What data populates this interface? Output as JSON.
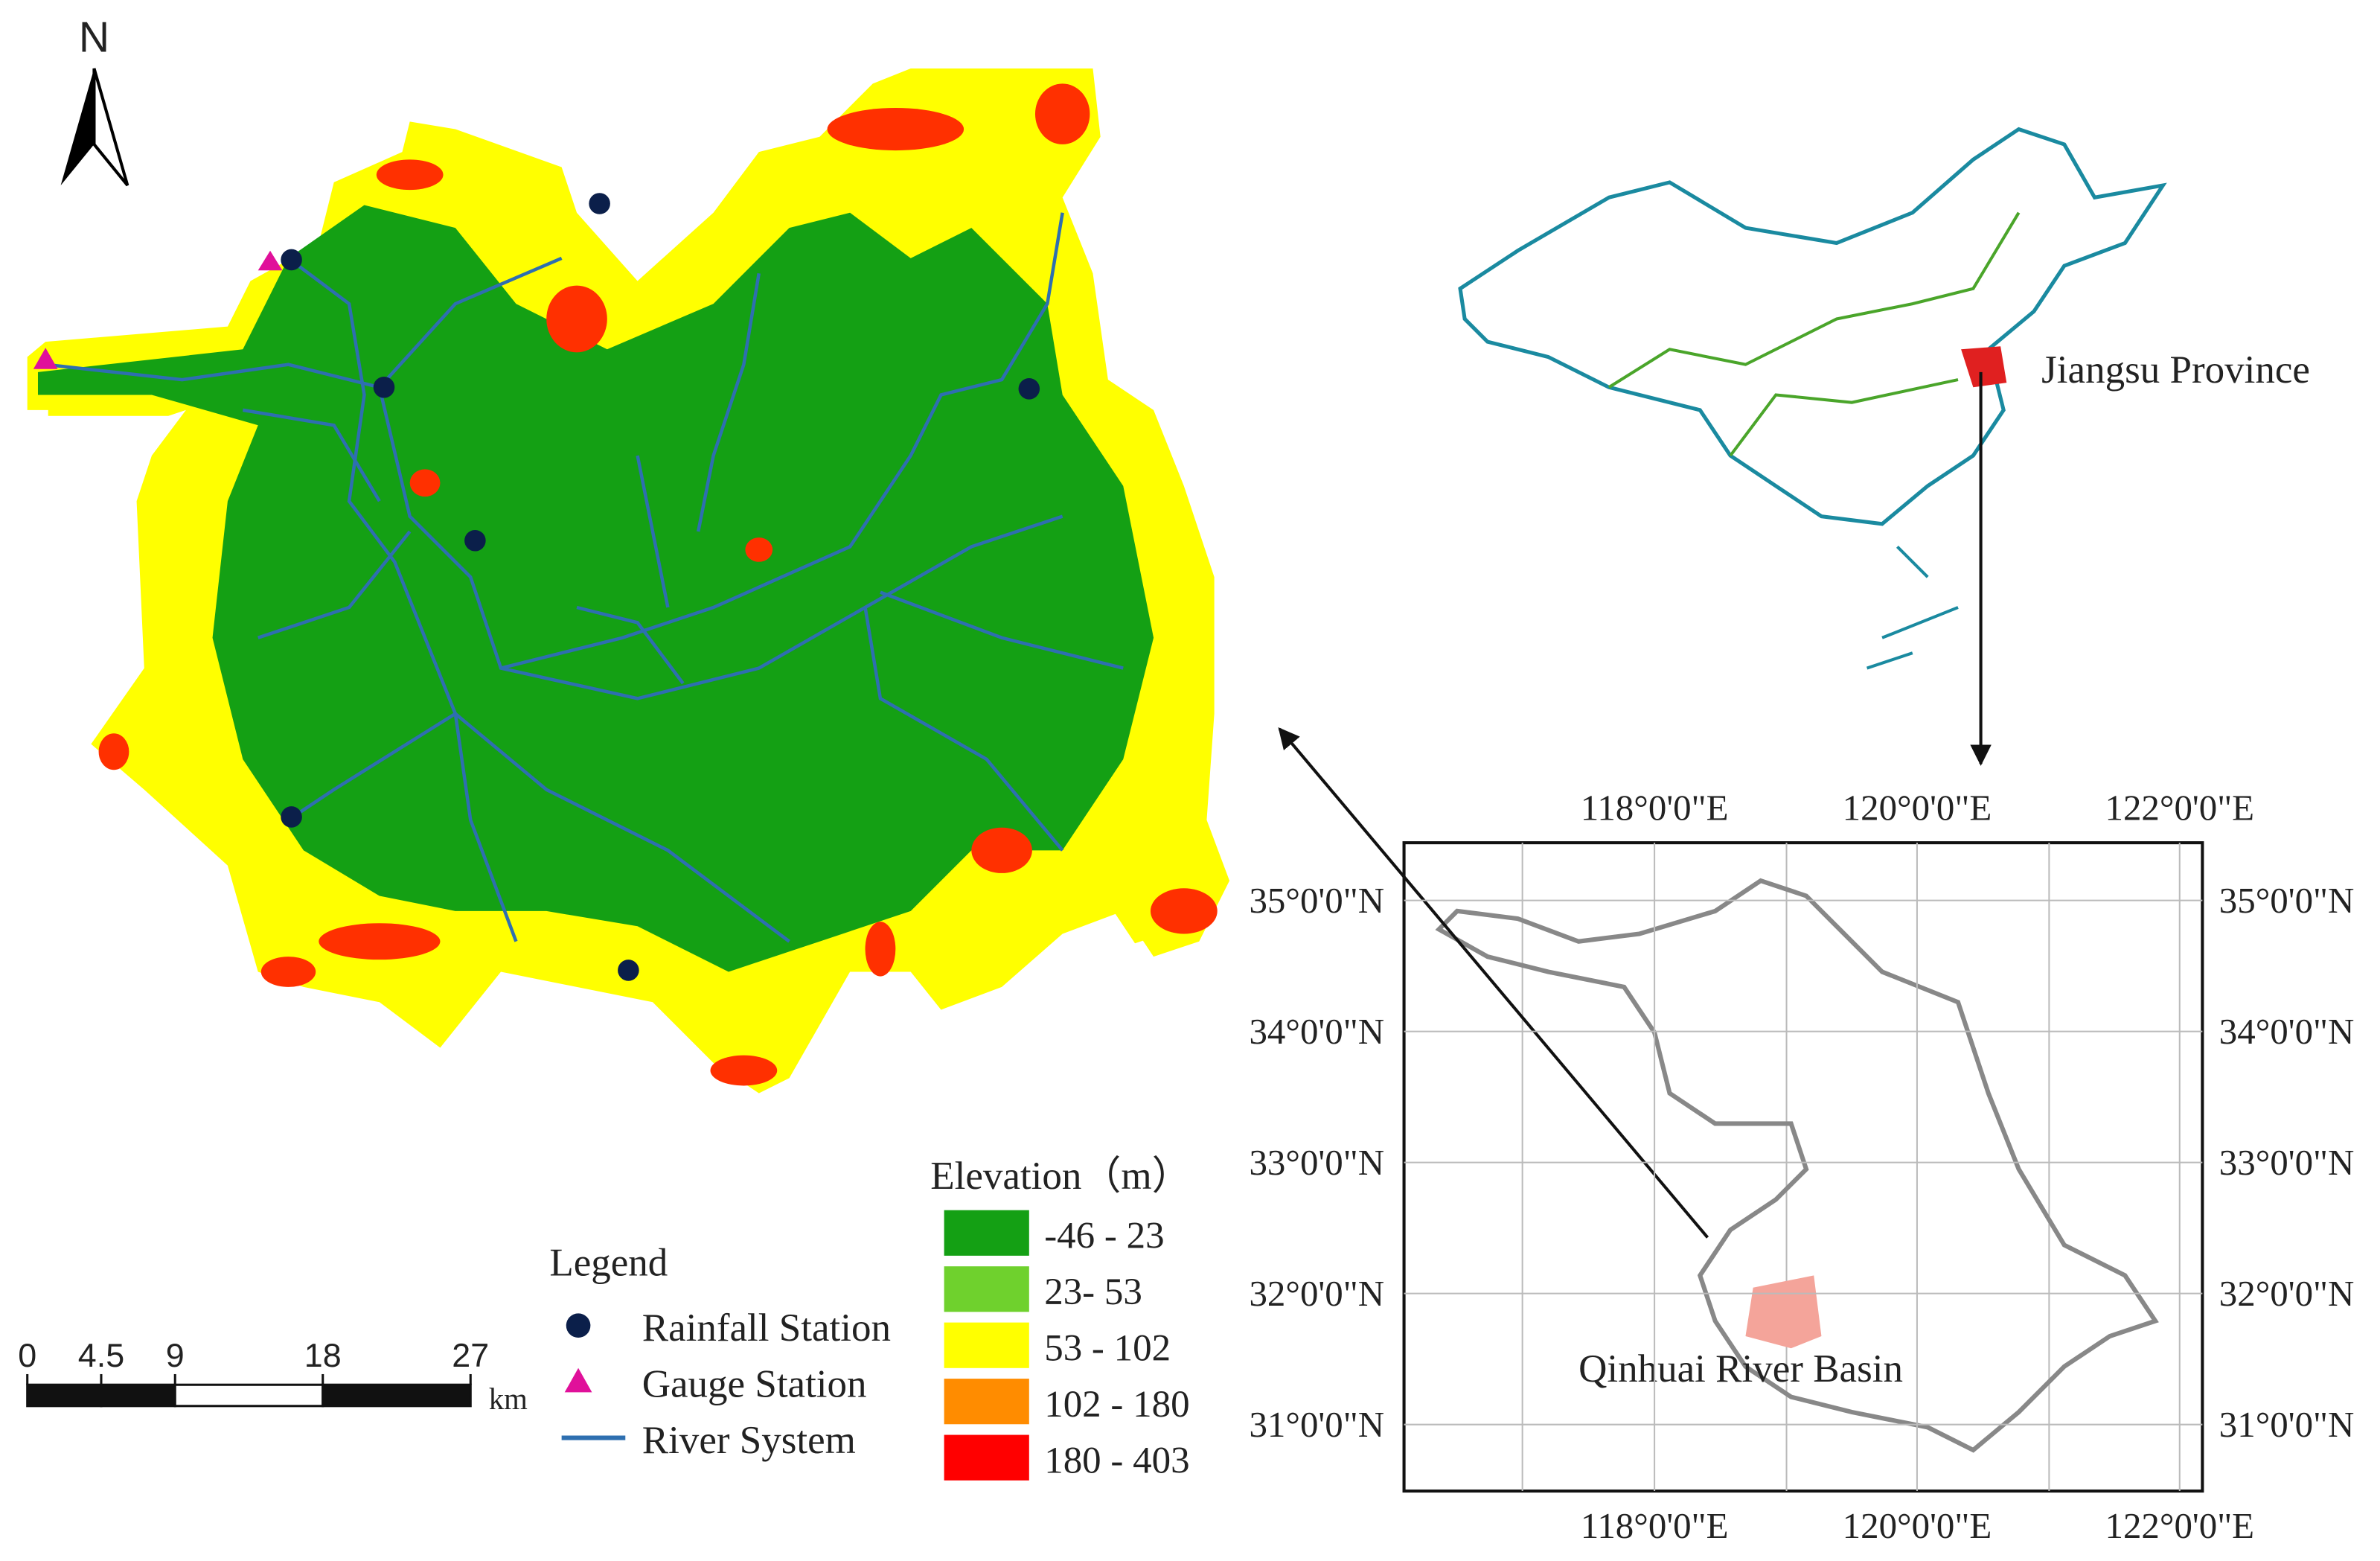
{
  "north_label": "N",
  "legend": {
    "title": "Legend",
    "items": [
      "Rainfall Station",
      "Gauge Station",
      "River System"
    ]
  },
  "elevation_legend": {
    "title": "Elevation（m）",
    "classes": [
      {
        "label": "-46 - 23",
        "color": "#14a014"
      },
      {
        "label": "23- 53",
        "color": "#6fd12d"
      },
      {
        "label": "53 - 102",
        "color": "#ffff00"
      },
      {
        "label": "102 - 180",
        "color": "#ff8c00"
      },
      {
        "label": "180 - 403",
        "color": "#ff0000"
      }
    ]
  },
  "scale_bar": {
    "ticks": [
      0,
      4.5,
      9,
      18,
      27
    ],
    "unit": "km"
  },
  "locator": {
    "province_label": "Jiangsu Province",
    "basin_label": "Qinhuai River Basin",
    "lon_ticks": [
      {
        "value": 118,
        "label": "118°0'0\"E"
      },
      {
        "value": 120,
        "label": "120°0'0\"E"
      },
      {
        "value": 122,
        "label": "122°0'0\"E"
      }
    ],
    "lat_ticks": [
      {
        "value": 35,
        "label": "35°0'0\"N"
      },
      {
        "value": 34,
        "label": "34°0'0\"N"
      },
      {
        "value": 33,
        "label": "33°0'0\"N"
      },
      {
        "value": 32,
        "label": "32°0'0\"N"
      },
      {
        "value": 31,
        "label": "31°0'0\"N"
      }
    ]
  }
}
